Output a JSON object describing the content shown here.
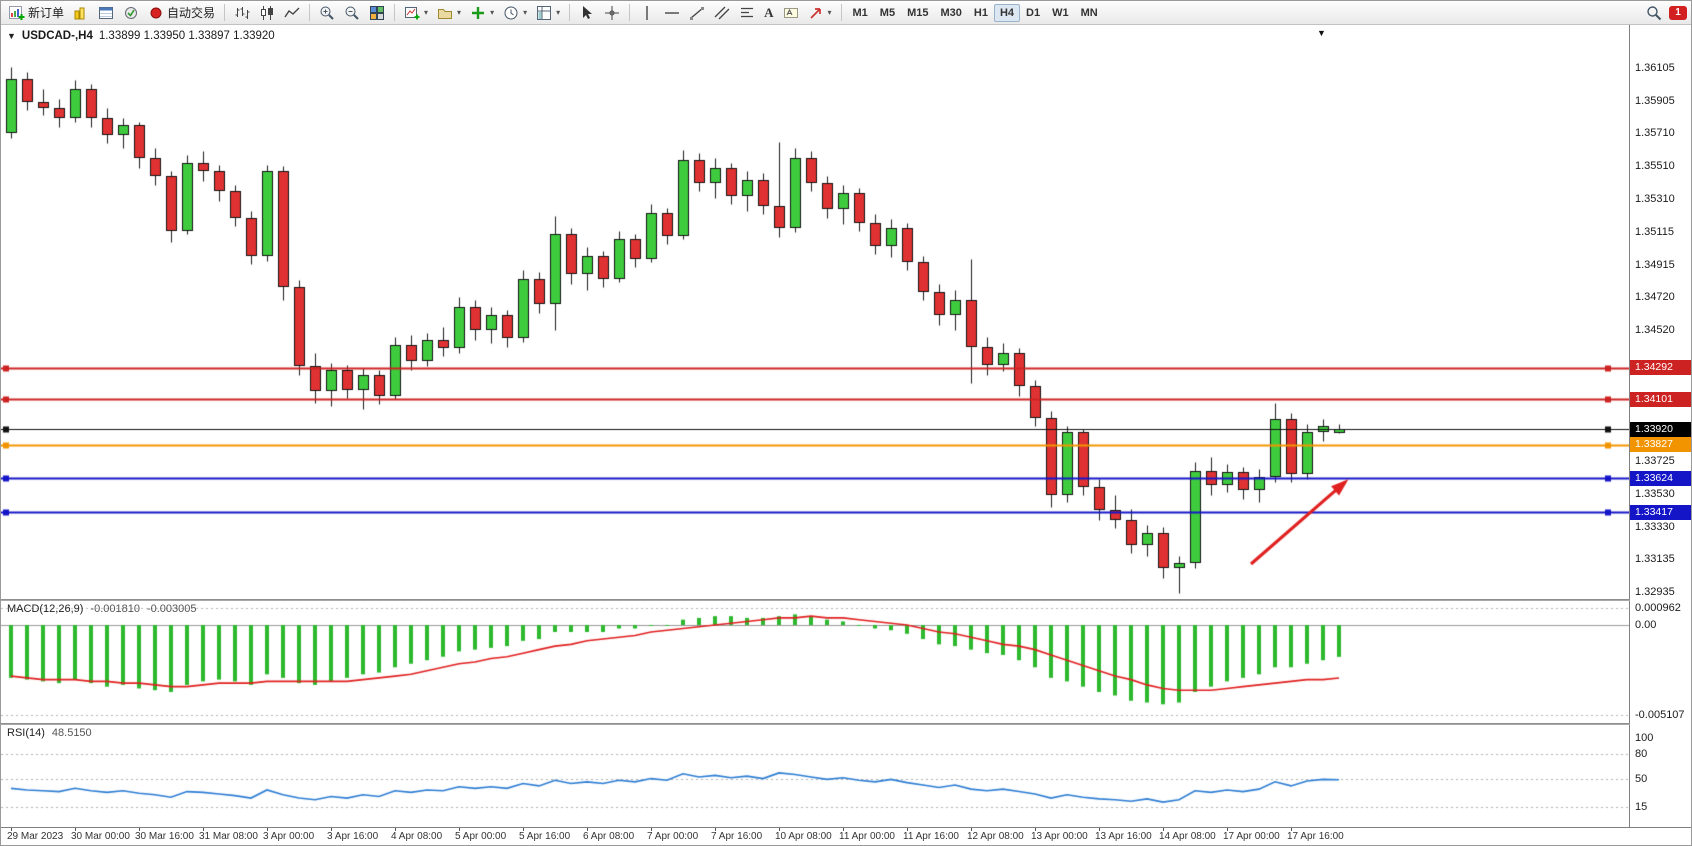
{
  "icons": {
    "dropdown": "▾",
    "triangle": "▼"
  },
  "toolbar": {
    "new_order_label": "新订单",
    "autotrade_label": "自动交易",
    "text_tool_label": "A",
    "timeframes": [
      "M1",
      "M5",
      "M15",
      "M30",
      "H1",
      "H4",
      "D1",
      "W1",
      "MN"
    ],
    "active_timeframe": "H4",
    "badge_count": "1"
  },
  "chart": {
    "title": "USDCAD-,H4",
    "ohlc": "1.33899 1.33950 1.33897 1.33920"
  },
  "panels": {
    "macd": {
      "title": "MACD(12,26,9)",
      "value_main": "-0.001810",
      "value_signal": "-0.003005"
    },
    "rsi": {
      "title": "RSI(14)",
      "value": "48.5150"
    }
  },
  "colors": {
    "bull": "#3ecb3e",
    "bear": "#e03232",
    "wick": "#1a1a1a",
    "macd_bar": "#2db82d",
    "macd_signal": "#e01f1f",
    "rsi_line": "#2b7cd3"
  },
  "chart_data": [
    {
      "type": "candlestick",
      "symbol": "USDCAD-",
      "timeframe": "H4",
      "ylim": [
        1.3289,
        1.3636
      ],
      "y_ticks": [
        1.36105,
        1.35905,
        1.3571,
        1.3551,
        1.3531,
        1.35115,
        1.34915,
        1.3472,
        1.3452,
        1.33725,
        1.3353,
        1.3333,
        1.33135,
        1.32935
      ],
      "x_labels": [
        "29 Mar 2023",
        "30 Mar 00:00",
        "30 Mar 16:00",
        "31 Mar 08:00",
        "3 Apr 00:00",
        "3 Apr 16:00",
        "4 Apr 08:00",
        "5 Apr 00:00",
        "5 Apr 16:00",
        "6 Apr 08:00",
        "7 Apr 00:00",
        "7 Apr 16:00",
        "10 Apr 08:00",
        "11 Apr 00:00",
        "11 Apr 16:00",
        "12 Apr 08:00",
        "13 Apr 00:00",
        "13 Apr 16:00",
        "14 Apr 08:00",
        "17 Apr 00:00",
        "17 Apr 16:00"
      ],
      "x_label_step": 4,
      "candles": [
        [
          1.3571,
          1.3611,
          1.3568,
          1.3604
        ],
        [
          1.3604,
          1.3608,
          1.3585,
          1.359
        ],
        [
          1.359,
          1.3598,
          1.3582,
          1.3586
        ],
        [
          1.3586,
          1.3592,
          1.3575,
          1.358
        ],
        [
          1.358,
          1.3603,
          1.3578,
          1.3598
        ],
        [
          1.3598,
          1.3601,
          1.3575,
          1.358
        ],
        [
          1.358,
          1.3586,
          1.3565,
          1.357
        ],
        [
          1.357,
          1.358,
          1.3562,
          1.3576
        ],
        [
          1.3576,
          1.3578,
          1.355,
          1.3556
        ],
        [
          1.3556,
          1.3562,
          1.354,
          1.3545
        ],
        [
          1.3545,
          1.3548,
          1.3505,
          1.3512
        ],
        [
          1.3512,
          1.3558,
          1.351,
          1.3553
        ],
        [
          1.3553,
          1.356,
          1.3542,
          1.3548
        ],
        [
          1.3548,
          1.3552,
          1.353,
          1.3536
        ],
        [
          1.3536,
          1.354,
          1.3515,
          1.352
        ],
        [
          1.352,
          1.3524,
          1.3492,
          1.3497
        ],
        [
          1.3497,
          1.3552,
          1.3494,
          1.3548
        ],
        [
          1.3548,
          1.3551,
          1.347,
          1.3478
        ],
        [
          1.3478,
          1.3482,
          1.3425,
          1.343
        ],
        [
          1.343,
          1.3438,
          1.3408,
          1.3415
        ],
        [
          1.3415,
          1.3432,
          1.3406,
          1.3428
        ],
        [
          1.3428,
          1.3431,
          1.3411,
          1.3416
        ],
        [
          1.3416,
          1.3429,
          1.3404,
          1.3425
        ],
        [
          1.3425,
          1.3428,
          1.3407,
          1.3412
        ],
        [
          1.3412,
          1.3448,
          1.341,
          1.3443
        ],
        [
          1.3443,
          1.3449,
          1.3428,
          1.3433
        ],
        [
          1.3433,
          1.345,
          1.343,
          1.3446
        ],
        [
          1.3446,
          1.3454,
          1.3436,
          1.3441
        ],
        [
          1.3441,
          1.3472,
          1.3438,
          1.3466
        ],
        [
          1.3466,
          1.347,
          1.3446,
          1.3452
        ],
        [
          1.3452,
          1.3466,
          1.3444,
          1.3461
        ],
        [
          1.3461,
          1.3464,
          1.3442,
          1.3447
        ],
        [
          1.3447,
          1.3488,
          1.3445,
          1.3483
        ],
        [
          1.3483,
          1.3487,
          1.3462,
          1.3468
        ],
        [
          1.3468,
          1.3521,
          1.3452,
          1.351
        ],
        [
          1.351,
          1.3514,
          1.348,
          1.3486
        ],
        [
          1.3486,
          1.3502,
          1.3476,
          1.3497
        ],
        [
          1.3497,
          1.35,
          1.3478,
          1.3483
        ],
        [
          1.3483,
          1.3512,
          1.3481,
          1.3507
        ],
        [
          1.3507,
          1.351,
          1.349,
          1.3495
        ],
        [
          1.3495,
          1.3528,
          1.3493,
          1.3523
        ],
        [
          1.3523,
          1.3526,
          1.3504,
          1.3509
        ],
        [
          1.3509,
          1.3561,
          1.3507,
          1.3555
        ],
        [
          1.3555,
          1.3559,
          1.3536,
          1.3541
        ],
        [
          1.3541,
          1.3556,
          1.3532,
          1.355
        ],
        [
          1.355,
          1.3553,
          1.3528,
          1.3533
        ],
        [
          1.3533,
          1.3548,
          1.3524,
          1.3543
        ],
        [
          1.3543,
          1.3547,
          1.3522,
          1.3527
        ],
        [
          1.3527,
          1.3566,
          1.3508,
          1.3514
        ],
        [
          1.3514,
          1.3562,
          1.3511,
          1.3556
        ],
        [
          1.3556,
          1.356,
          1.3536,
          1.3541
        ],
        [
          1.3541,
          1.3545,
          1.352,
          1.3525
        ],
        [
          1.3525,
          1.354,
          1.3516,
          1.3535
        ],
        [
          1.3535,
          1.3538,
          1.3512,
          1.3517
        ],
        [
          1.3517,
          1.3522,
          1.3498,
          1.3503
        ],
        [
          1.3503,
          1.3519,
          1.3496,
          1.3514
        ],
        [
          1.3514,
          1.3517,
          1.3488,
          1.3493
        ],
        [
          1.3493,
          1.3497,
          1.347,
          1.3475
        ],
        [
          1.3475,
          1.348,
          1.3455,
          1.3461
        ],
        [
          1.3461,
          1.3476,
          1.3452,
          1.347
        ],
        [
          1.347,
          1.3495,
          1.342,
          1.3442
        ],
        [
          1.3442,
          1.3448,
          1.3425,
          1.3431
        ],
        [
          1.3431,
          1.3444,
          1.3427,
          1.3438
        ],
        [
          1.3438,
          1.3441,
          1.3412,
          1.3418
        ],
        [
          1.3418,
          1.3422,
          1.3394,
          1.3399
        ],
        [
          1.3399,
          1.3403,
          1.3345,
          1.3352
        ],
        [
          1.3352,
          1.3394,
          1.3348,
          1.339
        ],
        [
          1.339,
          1.3392,
          1.3352,
          1.3357
        ],
        [
          1.3357,
          1.3362,
          1.3337,
          1.3343
        ],
        [
          1.3343,
          1.3352,
          1.3332,
          1.3337
        ],
        [
          1.3337,
          1.3344,
          1.3317,
          1.3322
        ],
        [
          1.3322,
          1.3334,
          1.3315,
          1.3329
        ],
        [
          1.3329,
          1.3333,
          1.3302,
          1.3308
        ],
        [
          1.3308,
          1.3315,
          1.3293,
          1.3311
        ],
        [
          1.3311,
          1.3372,
          1.3308,
          1.3367
        ],
        [
          1.3367,
          1.3375,
          1.3352,
          1.3358
        ],
        [
          1.3358,
          1.3371,
          1.3354,
          1.3366
        ],
        [
          1.3366,
          1.3369,
          1.335,
          1.3355
        ],
        [
          1.3355,
          1.3368,
          1.3348,
          1.3363
        ],
        [
          1.3363,
          1.3408,
          1.336,
          1.3398
        ],
        [
          1.3398,
          1.3402,
          1.336,
          1.3365
        ],
        [
          1.3365,
          1.3395,
          1.3362,
          1.339
        ],
        [
          1.339,
          1.3398,
          1.3385,
          1.3394
        ],
        [
          1.33899,
          1.3395,
          1.33897,
          1.3392
        ]
      ],
      "hlines": [
        {
          "price": 1.34292,
          "color": "#cc2222",
          "width": 2
        },
        {
          "price": 1.34101,
          "color": "#cc2222",
          "width": 2
        },
        {
          "price": 1.3392,
          "color": "#111111",
          "width": 1,
          "current": true
        },
        {
          "price": 1.33827,
          "color": "#f29400",
          "width": 2
        },
        {
          "price": 1.33624,
          "color": "#1515c8",
          "width": 2
        },
        {
          "price": 1.33417,
          "color": "#1515c8",
          "width": 2
        }
      ],
      "arrow": {
        "from_index": 77.5,
        "from_price": 1.33104,
        "to_index": 83.4,
        "to_price": 1.33601,
        "color": "#e02020"
      }
    },
    {
      "type": "bar",
      "name": "MACD(12,26,9)",
      "y_ticks": [
        {
          "v": 0.000962,
          "label": "0.000962"
        },
        {
          "v": 0,
          "label": "0.00"
        },
        {
          "v": -0.005107,
          "label": "-0.005107"
        }
      ],
      "values": [
        -0.003,
        -0.0031,
        -0.0032,
        -0.0033,
        -0.0031,
        -0.0033,
        -0.0035,
        -0.0034,
        -0.0036,
        -0.0037,
        -0.0038,
        -0.0034,
        -0.0032,
        -0.0031,
        -0.0032,
        -0.0034,
        -0.0028,
        -0.003,
        -0.0033,
        -0.0034,
        -0.0032,
        -0.003,
        -0.0028,
        -0.0027,
        -0.0024,
        -0.0022,
        -0.002,
        -0.0018,
        -0.0015,
        -0.0014,
        -0.0013,
        -0.0012,
        -0.0009,
        -0.0008,
        -0.0004,
        -0.0004,
        -0.0004,
        -0.0004,
        -0.0002,
        -0.0002,
        0.0,
        0.0,
        0.0003,
        0.0004,
        0.0005,
        0.0005,
        0.0004,
        0.0004,
        0.0005,
        0.0006,
        0.0005,
        0.0003,
        0.0002,
        0.0,
        -0.0002,
        -0.0003,
        -0.0005,
        -0.0008,
        -0.0011,
        -0.0012,
        -0.0014,
        -0.0016,
        -0.0017,
        -0.002,
        -0.0024,
        -0.003,
        -0.0032,
        -0.0035,
        -0.0038,
        -0.004,
        -0.0043,
        -0.0044,
        -0.0045,
        -0.0044,
        -0.0038,
        -0.0035,
        -0.0032,
        -0.003,
        -0.0028,
        -0.0024,
        -0.0024,
        -0.0022,
        -0.002,
        -0.00181
      ],
      "signal": [
        -0.0029,
        -0.003,
        -0.0031,
        -0.0031,
        -0.0031,
        -0.0032,
        -0.0032,
        -0.0033,
        -0.0033,
        -0.0034,
        -0.0035,
        -0.0035,
        -0.0034,
        -0.0033,
        -0.0033,
        -0.0033,
        -0.0032,
        -0.0032,
        -0.0032,
        -0.0032,
        -0.0032,
        -0.0032,
        -0.0031,
        -0.003,
        -0.0029,
        -0.0028,
        -0.0026,
        -0.0024,
        -0.0022,
        -0.0021,
        -0.0019,
        -0.0018,
        -0.0016,
        -0.0014,
        -0.0012,
        -0.0011,
        -0.0009,
        -0.0008,
        -0.0007,
        -0.0006,
        -0.0004,
        -0.0003,
        -0.0002,
        -0.0001,
        0.0,
        0.0001,
        0.0002,
        0.0003,
        0.0004,
        0.0004,
        0.0005,
        0.0004,
        0.0004,
        0.0003,
        0.0002,
        0.0001,
        0.0,
        -0.0002,
        -0.0004,
        -0.0005,
        -0.0007,
        -0.0009,
        -0.0011,
        -0.0012,
        -0.0014,
        -0.0017,
        -0.002,
        -0.0023,
        -0.0026,
        -0.0029,
        -0.0031,
        -0.0034,
        -0.0036,
        -0.0037,
        -0.0037,
        -0.0037,
        -0.0036,
        -0.0035,
        -0.0034,
        -0.0033,
        -0.0032,
        -0.0031,
        -0.0031,
        -0.003005
      ],
      "current": "-0.001810 -0.003005"
    },
    {
      "type": "line",
      "name": "RSI(14)",
      "y_ticks": [
        {
          "v": 100,
          "label": "100"
        },
        {
          "v": 80,
          "label": "80"
        },
        {
          "v": 50,
          "label": "50"
        },
        {
          "v": 15,
          "label": "15"
        }
      ],
      "levels": [
        80,
        50,
        15
      ],
      "values": [
        38,
        36,
        35,
        34,
        38,
        35,
        33,
        35,
        32,
        30,
        27,
        34,
        33,
        31,
        29,
        26,
        36,
        30,
        26,
        24,
        28,
        26,
        30,
        28,
        35,
        33,
        36,
        35,
        40,
        38,
        40,
        38,
        44,
        41,
        48,
        44,
        46,
        44,
        48,
        46,
        50,
        48,
        56,
        52,
        54,
        51,
        53,
        50,
        57,
        55,
        52,
        49,
        51,
        48,
        46,
        49,
        45,
        42,
        39,
        42,
        37,
        35,
        37,
        34,
        31,
        26,
        30,
        27,
        25,
        24,
        22,
        25,
        21,
        24,
        35,
        33,
        36,
        34,
        37,
        46,
        41,
        47,
        49,
        48.515
      ],
      "current": "48.5150"
    }
  ]
}
